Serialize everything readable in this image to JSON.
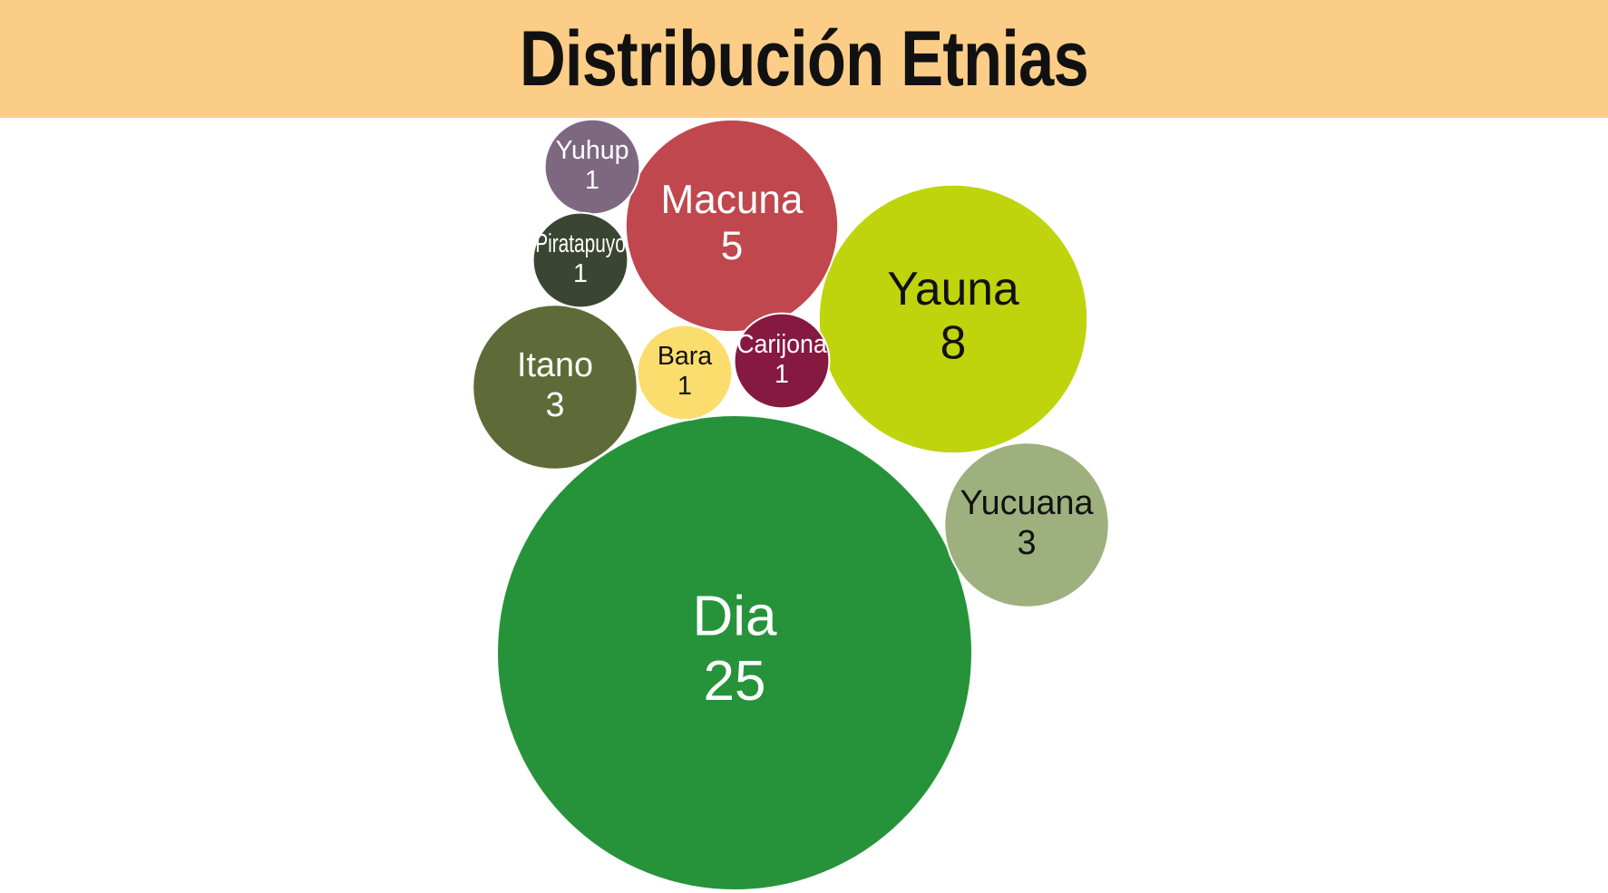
{
  "title": "Distribución Etnias",
  "chart_data": {
    "type": "bubble",
    "title": "Distribución Etnias",
    "legend": "none",
    "grid": false,
    "points": [
      {
        "name": "Dia",
        "value": 25,
        "color": "#26933A",
        "text_color": "#ffffff"
      },
      {
        "name": "Yauna",
        "value": 8,
        "color": "#BFD40C",
        "text_color": "#111111"
      },
      {
        "name": "Macuna",
        "value": 5,
        "color": "#C0474D",
        "text_color": "#ffffff"
      },
      {
        "name": "Itano",
        "value": 3,
        "color": "#5E6B38",
        "text_color": "#ffffff"
      },
      {
        "name": "Yucuana",
        "value": 3,
        "color": "#9EB07E",
        "text_color": "#111111"
      },
      {
        "name": "Yuhup",
        "value": 1,
        "color": "#7D6880",
        "text_color": "#ffffff"
      },
      {
        "name": "Piratapuyo",
        "value": 1,
        "color": "#3A4631",
        "text_color": "#ffffff"
      },
      {
        "name": "Bara",
        "value": 1,
        "color": "#FBDD6E",
        "text_color": "#111111"
      },
      {
        "name": "Carijona",
        "value": 1,
        "color": "#861940",
        "text_color": "#ffffff"
      }
    ]
  }
}
